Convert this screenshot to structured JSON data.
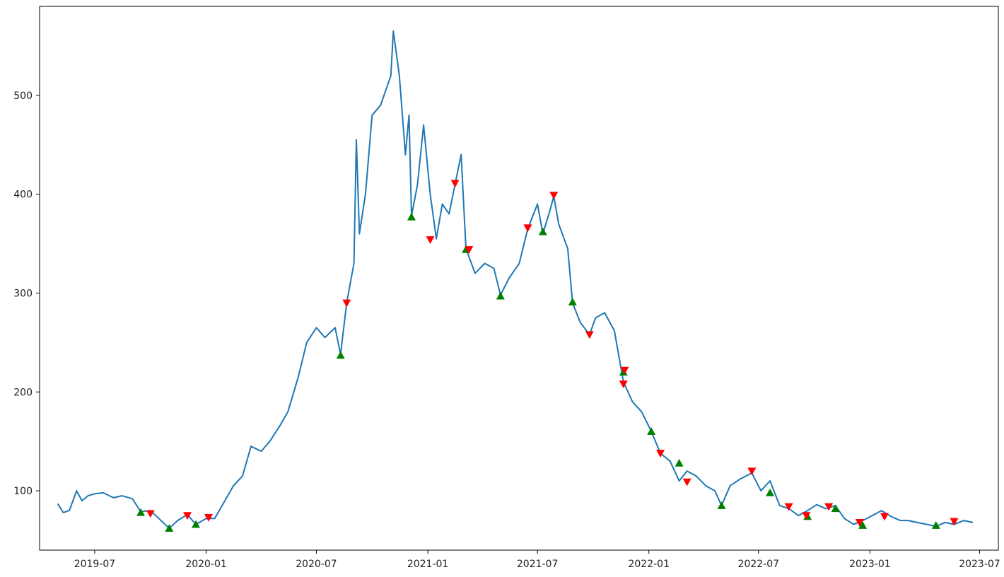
{
  "chart_data": {
    "type": "line",
    "title": "",
    "xlabel": "",
    "ylabel": "",
    "xlim": [
      "2019-04-01",
      "2023-08-01"
    ],
    "ylim": [
      40,
      590
    ],
    "grid": false,
    "x_ticks": [
      {
        "date": "2019-07-01",
        "label": "2019-07"
      },
      {
        "date": "2020-01-01",
        "label": "2020-01"
      },
      {
        "date": "2020-07-01",
        "label": "2020-07"
      },
      {
        "date": "2021-01-01",
        "label": "2021-01"
      },
      {
        "date": "2021-07-01",
        "label": "2021-07"
      },
      {
        "date": "2022-01-01",
        "label": "2022-01"
      },
      {
        "date": "2022-07-01",
        "label": "2022-07"
      },
      {
        "date": "2023-01-01",
        "label": "2023-01"
      },
      {
        "date": "2023-07-01",
        "label": "2023-07"
      }
    ],
    "y_ticks": [
      100,
      200,
      300,
      400,
      500
    ],
    "series": [
      {
        "color": "#1f77b4",
        "points": [
          [
            "2019-05-01",
            87
          ],
          [
            "2019-05-10",
            78
          ],
          [
            "2019-05-20",
            80
          ],
          [
            "2019-06-01",
            100
          ],
          [
            "2019-06-10",
            90
          ],
          [
            "2019-06-20",
            95
          ],
          [
            "2019-07-01",
            97
          ],
          [
            "2019-07-15",
            98
          ],
          [
            "2019-08-01",
            93
          ],
          [
            "2019-08-15",
            95
          ],
          [
            "2019-09-01",
            92
          ],
          [
            "2019-09-15",
            79
          ],
          [
            "2019-10-01",
            80
          ],
          [
            "2019-10-15",
            72
          ],
          [
            "2019-11-01",
            62
          ],
          [
            "2019-11-15",
            70
          ],
          [
            "2019-12-01",
            76
          ],
          [
            "2019-12-15",
            66
          ],
          [
            "2020-01-01",
            72
          ],
          [
            "2020-01-15",
            72
          ],
          [
            "2020-02-01",
            90
          ],
          [
            "2020-02-15",
            105
          ],
          [
            "2020-03-01",
            115
          ],
          [
            "2020-03-15",
            145
          ],
          [
            "2020-04-01",
            140
          ],
          [
            "2020-04-15",
            150
          ],
          [
            "2020-05-01",
            165
          ],
          [
            "2020-05-15",
            180
          ],
          [
            "2020-06-01",
            215
          ],
          [
            "2020-06-15",
            250
          ],
          [
            "2020-07-01",
            265
          ],
          [
            "2020-07-15",
            255
          ],
          [
            "2020-08-01",
            265
          ],
          [
            "2020-08-10",
            238
          ],
          [
            "2020-08-20",
            290
          ],
          [
            "2020-09-01",
            330
          ],
          [
            "2020-09-05",
            455
          ],
          [
            "2020-09-10",
            360
          ],
          [
            "2020-09-20",
            400
          ],
          [
            "2020-10-01",
            480
          ],
          [
            "2020-10-15",
            490
          ],
          [
            "2020-11-01",
            520
          ],
          [
            "2020-11-05",
            565
          ],
          [
            "2020-11-15",
            520
          ],
          [
            "2020-11-25",
            440
          ],
          [
            "2020-12-01",
            480
          ],
          [
            "2020-12-05",
            378
          ],
          [
            "2020-12-15",
            410
          ],
          [
            "2020-12-25",
            470
          ],
          [
            "2021-01-05",
            400
          ],
          [
            "2021-01-15",
            355
          ],
          [
            "2021-01-25",
            390
          ],
          [
            "2021-02-05",
            380
          ],
          [
            "2021-02-15",
            410
          ],
          [
            "2021-02-25",
            440
          ],
          [
            "2021-03-05",
            345
          ],
          [
            "2021-03-20",
            320
          ],
          [
            "2021-04-05",
            330
          ],
          [
            "2021-04-20",
            325
          ],
          [
            "2021-05-01",
            298
          ],
          [
            "2021-05-15",
            315
          ],
          [
            "2021-06-01",
            330
          ],
          [
            "2021-06-15",
            365
          ],
          [
            "2021-07-01",
            390
          ],
          [
            "2021-07-10",
            360
          ],
          [
            "2021-07-20",
            380
          ],
          [
            "2021-07-28",
            398
          ],
          [
            "2021-08-05",
            370
          ],
          [
            "2021-08-20",
            345
          ],
          [
            "2021-08-28",
            290
          ],
          [
            "2021-09-10",
            270
          ],
          [
            "2021-09-25",
            258
          ],
          [
            "2021-10-05",
            275
          ],
          [
            "2021-10-20",
            280
          ],
          [
            "2021-11-05",
            262
          ],
          [
            "2021-11-20",
            210
          ],
          [
            "2021-12-05",
            190
          ],
          [
            "2021-12-20",
            180
          ],
          [
            "2022-01-05",
            160
          ],
          [
            "2022-01-20",
            138
          ],
          [
            "2022-02-05",
            130
          ],
          [
            "2022-02-20",
            110
          ],
          [
            "2022-03-05",
            120
          ],
          [
            "2022-03-20",
            115
          ],
          [
            "2022-04-05",
            105
          ],
          [
            "2022-04-20",
            100
          ],
          [
            "2022-05-01",
            85
          ],
          [
            "2022-05-15",
            105
          ],
          [
            "2022-06-01",
            112
          ],
          [
            "2022-06-20",
            118
          ],
          [
            "2022-07-05",
            100
          ],
          [
            "2022-07-20",
            110
          ],
          [
            "2022-08-05",
            85
          ],
          [
            "2022-08-20",
            82
          ],
          [
            "2022-09-05",
            75
          ],
          [
            "2022-09-20",
            80
          ],
          [
            "2022-10-05",
            86
          ],
          [
            "2022-10-20",
            82
          ],
          [
            "2022-11-05",
            85
          ],
          [
            "2022-11-20",
            72
          ],
          [
            "2022-12-05",
            66
          ],
          [
            "2022-12-20",
            70
          ],
          [
            "2023-01-05",
            75
          ],
          [
            "2023-01-20",
            80
          ],
          [
            "2023-02-05",
            74
          ],
          [
            "2023-02-20",
            70
          ],
          [
            "2023-03-05",
            70
          ],
          [
            "2023-03-20",
            68
          ],
          [
            "2023-04-05",
            66
          ],
          [
            "2023-04-20",
            64
          ],
          [
            "2023-05-05",
            68
          ],
          [
            "2023-05-20",
            66
          ],
          [
            "2023-06-05",
            70
          ],
          [
            "2023-06-20",
            68
          ]
        ]
      }
    ],
    "buy_markers": {
      "color": "#008000",
      "marker": "triangle-up",
      "points": [
        [
          "2019-09-15",
          78
        ],
        [
          "2019-11-01",
          62
        ],
        [
          "2019-12-15",
          66
        ],
        [
          "2020-08-10",
          237
        ],
        [
          "2020-12-05",
          377
        ],
        [
          "2021-03-05",
          344
        ],
        [
          "2021-05-01",
          297
        ],
        [
          "2021-07-10",
          362
        ],
        [
          "2021-08-28",
          291
        ],
        [
          "2021-11-20",
          220
        ],
        [
          "2022-01-05",
          160
        ],
        [
          "2022-02-20",
          128
        ],
        [
          "2022-05-01",
          85
        ],
        [
          "2022-07-20",
          98
        ],
        [
          "2022-09-20",
          74
        ],
        [
          "2022-11-05",
          82
        ],
        [
          "2022-12-20",
          65
        ],
        [
          "2023-04-20",
          65
        ]
      ]
    },
    "sell_markers": {
      "color": "#ff0000",
      "marker": "triangle-down",
      "points": [
        [
          "2019-10-01",
          77
        ],
        [
          "2019-12-01",
          75
        ],
        [
          "2020-01-05",
          73
        ],
        [
          "2020-08-20",
          290
        ],
        [
          "2021-01-05",
          354
        ],
        [
          "2021-02-15",
          411
        ],
        [
          "2021-03-10",
          344
        ],
        [
          "2021-06-15",
          366
        ],
        [
          "2021-07-28",
          399
        ],
        [
          "2021-09-25",
          258
        ],
        [
          "2021-11-20",
          208
        ],
        [
          "2021-11-22",
          222
        ],
        [
          "2022-01-20",
          138
        ],
        [
          "2022-03-05",
          109
        ],
        [
          "2022-06-20",
          120
        ],
        [
          "2022-08-20",
          84
        ],
        [
          "2022-09-18",
          75
        ],
        [
          "2022-10-25",
          84
        ],
        [
          "2022-12-15",
          68
        ],
        [
          "2023-01-25",
          74
        ],
        [
          "2023-05-20",
          69
        ]
      ]
    }
  }
}
